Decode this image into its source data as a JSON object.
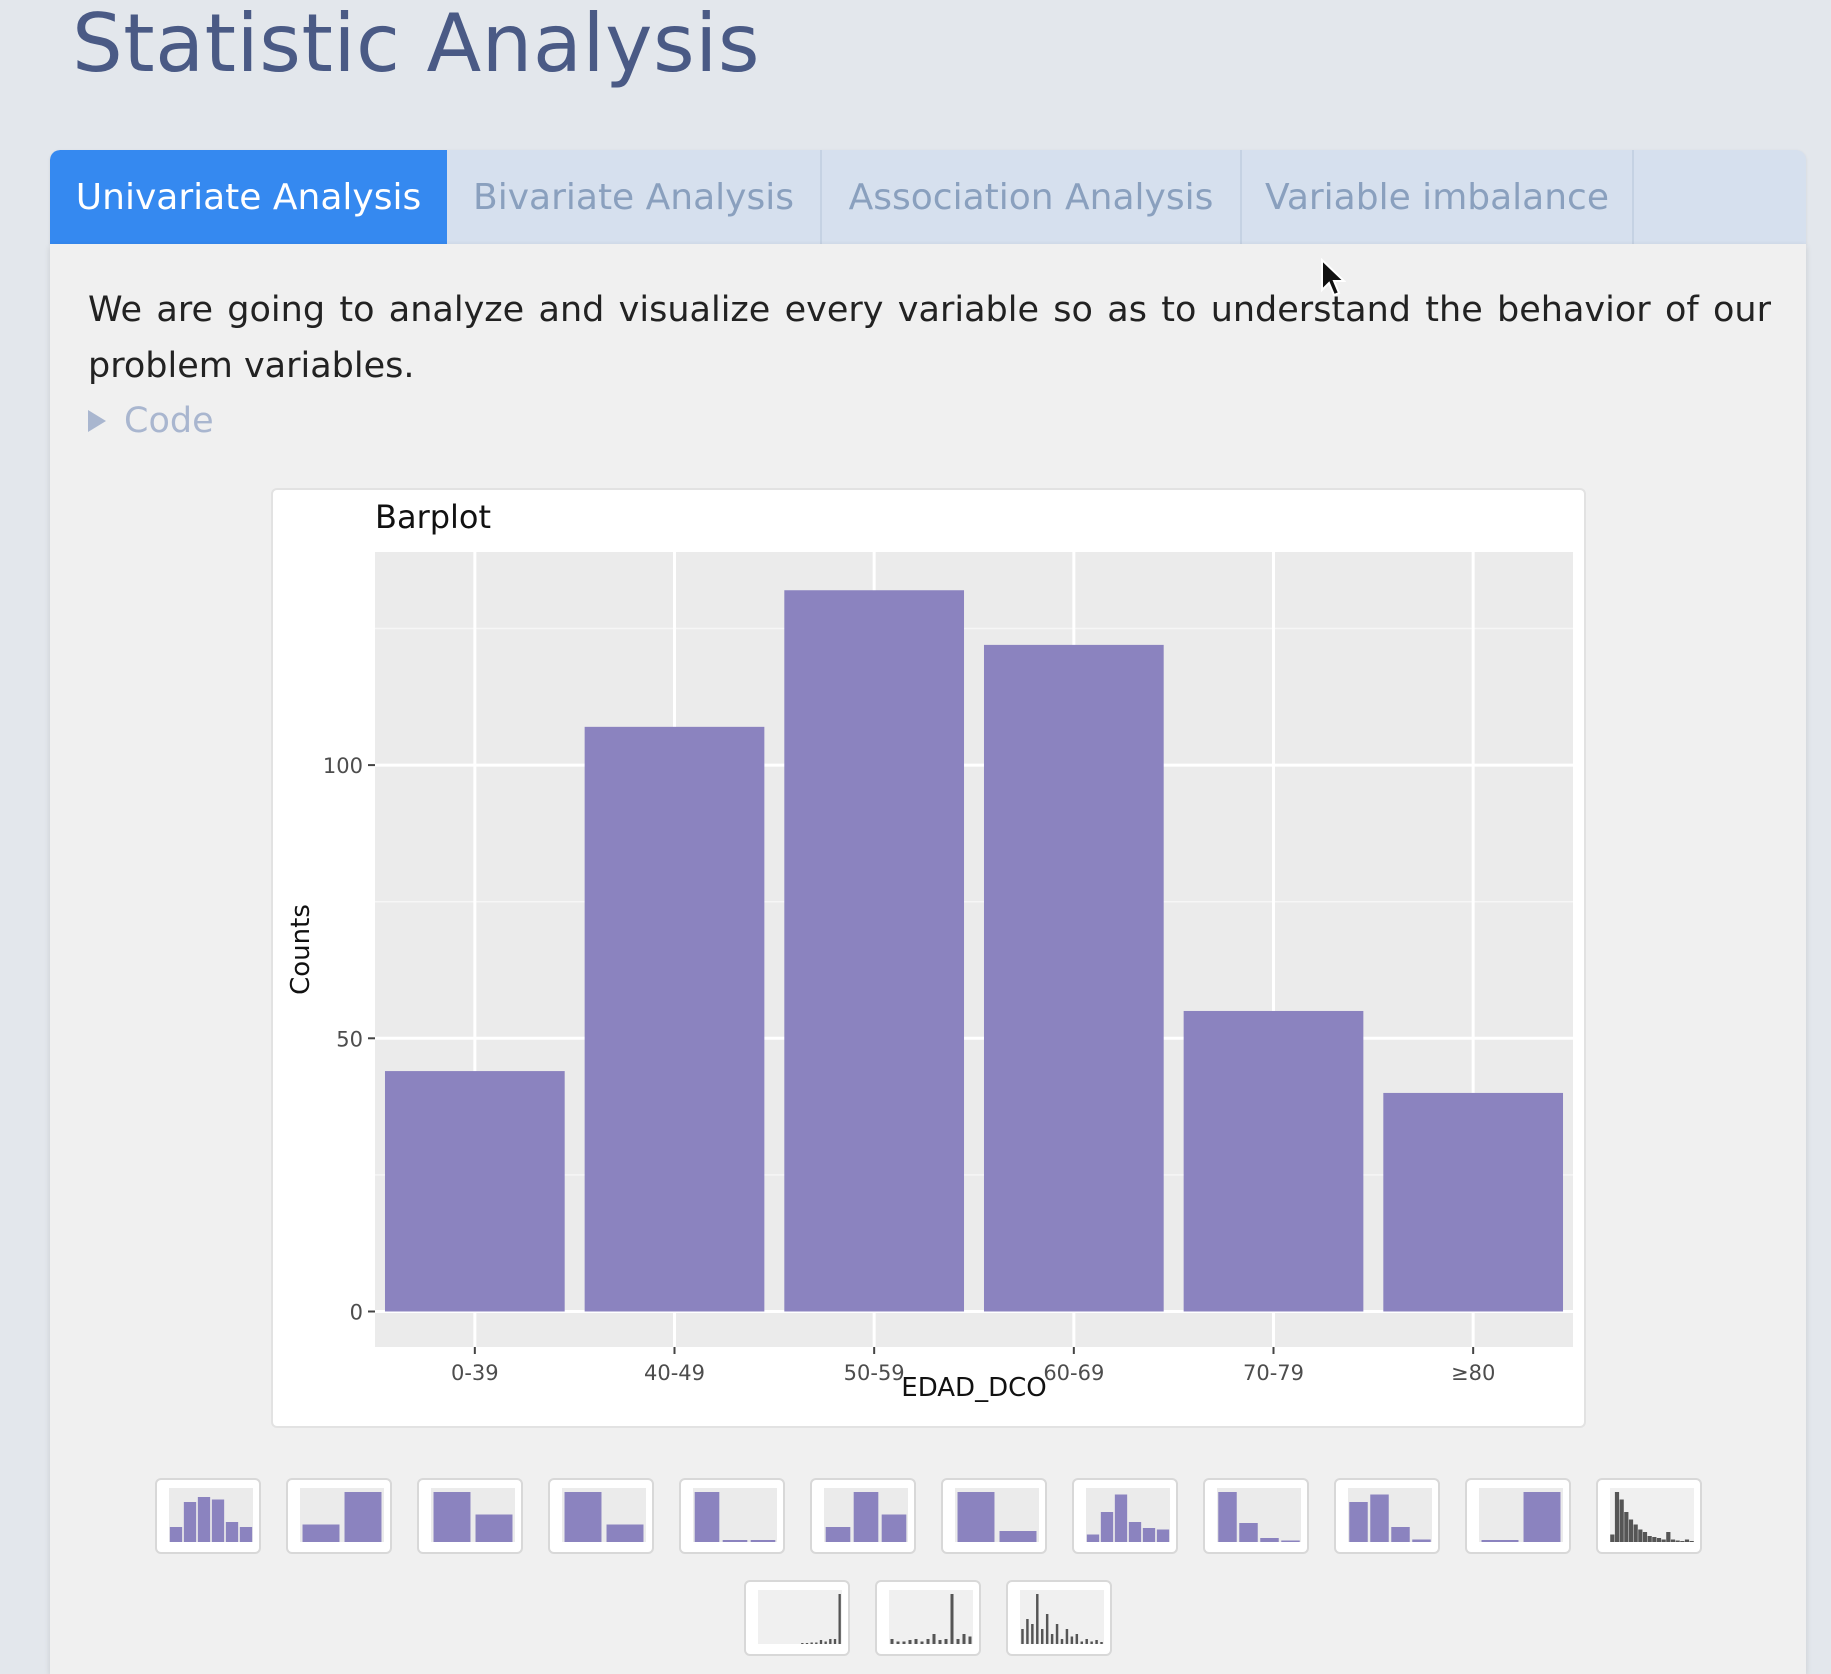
{
  "page": {
    "title": "Statistic Analysis"
  },
  "tabs": [
    {
      "label": "Univariate Analysis",
      "active": true
    },
    {
      "label": "Bivariate Analysis",
      "active": false
    },
    {
      "label": "Association Analysis",
      "active": false
    },
    {
      "label": "Variable imbalance",
      "active": false
    }
  ],
  "content": {
    "intro": "We are going to analyze and visualize every variable so as to understand the behavior of our problem variables.",
    "code_toggle": "Code"
  },
  "colors": {
    "accent": "#3589f0",
    "bar_fill": "#8b83bf",
    "title": "#4a5a85",
    "muted_link": "#a9b6cf",
    "plot_bg": "#ebebeb",
    "thumb_dark": "#555555"
  },
  "chart_data": {
    "type": "bar",
    "title": "Barplot",
    "xlabel": "EDAD_DCO",
    "ylabel": "Counts",
    "categories": [
      "0-39",
      "40-49",
      "50-59",
      "60-69",
      "70-79",
      "≥80"
    ],
    "values": [
      44,
      107,
      132,
      122,
      55,
      40
    ],
    "ylim": [
      -6.5,
      139
    ],
    "yticks": [
      0,
      50,
      100
    ],
    "grid": true,
    "legend": "none"
  },
  "thumbnails": {
    "row1": [
      {
        "name": "thumb-1",
        "kind": "bars",
        "color": "purple",
        "values": [
          0.3,
          0.8,
          0.9,
          0.85,
          0.4,
          0.3
        ]
      },
      {
        "name": "thumb-2",
        "kind": "bars",
        "color": "purple",
        "values": [
          0.35,
          1.0
        ]
      },
      {
        "name": "thumb-3",
        "kind": "bars",
        "color": "purple",
        "values": [
          1.0,
          0.55
        ]
      },
      {
        "name": "thumb-4",
        "kind": "bars",
        "color": "purple",
        "values": [
          1.0,
          0.35
        ]
      },
      {
        "name": "thumb-5",
        "kind": "bars",
        "color": "purple",
        "values": [
          1.0,
          0.04,
          0.04
        ]
      },
      {
        "name": "thumb-6",
        "kind": "bars",
        "color": "purple",
        "values": [
          0.3,
          1.0,
          0.55
        ]
      },
      {
        "name": "thumb-7",
        "kind": "bars",
        "color": "purple",
        "values": [
          1.0,
          0.22
        ]
      },
      {
        "name": "thumb-8",
        "kind": "bars",
        "color": "purple",
        "values": [
          0.15,
          0.6,
          0.95,
          0.4,
          0.28,
          0.25
        ]
      },
      {
        "name": "thumb-9",
        "kind": "bars",
        "color": "purple",
        "values": [
          1.0,
          0.38,
          0.08,
          0.03
        ]
      },
      {
        "name": "thumb-10",
        "kind": "bars",
        "color": "purple",
        "values": [
          0.8,
          0.95,
          0.3,
          0.05
        ]
      },
      {
        "name": "thumb-11",
        "kind": "bars",
        "color": "purple",
        "values": [
          0.04,
          1.0
        ]
      },
      {
        "name": "thumb-12",
        "kind": "hist",
        "color": "dark",
        "values": [
          0.15,
          1.0,
          0.85,
          0.6,
          0.45,
          0.35,
          0.25,
          0.2,
          0.12,
          0.1,
          0.08,
          0.05,
          0.2,
          0.05,
          0.03,
          0.02,
          0.05,
          0.02
        ]
      }
    ],
    "row2": [
      {
        "name": "thumb-13",
        "kind": "spike",
        "color": "dark",
        "values": [
          0,
          0,
          0,
          0,
          0,
          0,
          0,
          0,
          0,
          0.02,
          0.02,
          0.03,
          0.03,
          0.08,
          0.05,
          0.1,
          0.1,
          1.0
        ]
      },
      {
        "name": "thumb-14",
        "kind": "spike",
        "color": "dark",
        "values": [
          0.1,
          0.05,
          0.05,
          0.08,
          0.1,
          0.05,
          0.1,
          0.2,
          0.08,
          0.1,
          1.0,
          0.1,
          0.2,
          0.15
        ]
      },
      {
        "name": "thumb-15",
        "kind": "spike",
        "color": "dark",
        "values": [
          0.3,
          0.5,
          0.4,
          1.0,
          0.3,
          0.6,
          0.2,
          0.4,
          0.1,
          0.3,
          0.15,
          0.2,
          0.05,
          0.1,
          0.05,
          0.08,
          0.04
        ]
      }
    ]
  }
}
